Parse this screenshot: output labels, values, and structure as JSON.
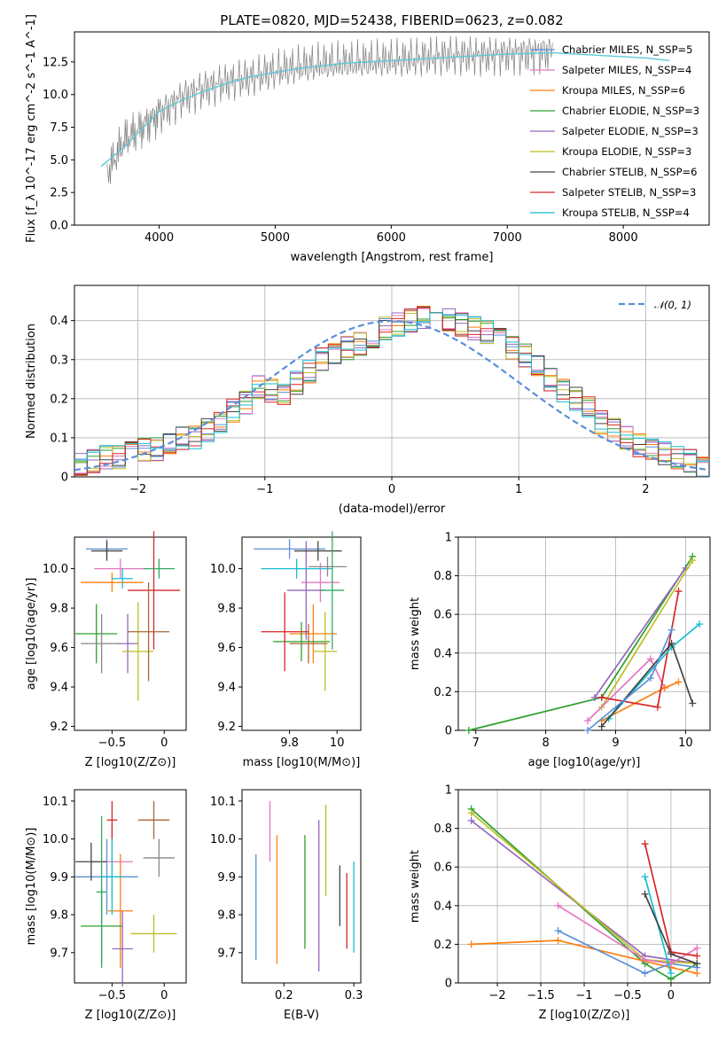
{
  "chart_data": [
    {
      "type": "line",
      "title": "PLATE=0820, MJD=52438, FIBERID=0623, z=0.082",
      "xlabel": "wavelength [Angstrom, rest frame]",
      "ylabel": "Flux [f_λ 10^-17 erg cm^-2 s^-1 A^-1]",
      "xlim": [
        3270,
        8740
      ],
      "ylim": [
        0,
        14.8
      ],
      "xticks": [
        4000,
        5000,
        6000,
        7000,
        8000
      ],
      "yticks": [
        0.0,
        2.5,
        5.0,
        7.5,
        10.0,
        12.5
      ],
      "legend_position": "upper right",
      "legend": [
        "Chabrier MILES, N_SSP=5",
        "Salpeter MILES, N_SSP=4",
        "Kroupa MILES, N_SSP=6",
        "Chabrier ELODIE, N_SSP=3",
        "Salpeter ELODIE, N_SSP=3",
        "Kroupa ELODIE, N_SSP=3",
        "Chabrier STELIB, N_SSP=6",
        "Salpeter STELIB, N_SSP=3",
        "Kroupa STELIB, N_SSP=4"
      ],
      "series": [
        {
          "name": "data",
          "x": [
            3550,
            3700,
            3850,
            4000,
            4200,
            4400,
            4600,
            4800,
            5000,
            5200,
            5400,
            5600,
            5800,
            6000,
            6200,
            6400,
            6600,
            6800,
            7000,
            7200,
            7400
          ],
          "y": [
            4.0,
            6.5,
            7.5,
            8.5,
            9.8,
            10.5,
            11.0,
            11.3,
            11.8,
            12.1,
            12.3,
            12.4,
            12.5,
            12.6,
            12.7,
            12.9,
            13.0,
            13.0,
            13.1,
            13.2,
            13.3
          ]
        },
        {
          "name": "model",
          "x": [
            3500,
            3700,
            3900,
            4000,
            4200,
            4400,
            4600,
            4800,
            5000,
            5200,
            5400,
            5600,
            5800,
            6000,
            6200,
            6400,
            6600,
            6800,
            7000,
            7200,
            7400,
            7600,
            7800,
            8000,
            8200,
            8400
          ],
          "y": [
            4.5,
            6.0,
            7.8,
            8.7,
            9.6,
            10.3,
            10.9,
            11.4,
            11.7,
            12.0,
            12.2,
            12.4,
            12.5,
            12.6,
            12.7,
            12.8,
            12.9,
            13.0,
            13.1,
            13.15,
            13.2,
            13.1,
            13.0,
            12.9,
            12.8,
            12.6
          ]
        }
      ]
    },
    {
      "type": "line",
      "xlabel": "(data-model)/error",
      "ylabel": "Normed distribution",
      "xlim": [
        -2.5,
        2.5
      ],
      "ylim": [
        0,
        0.49
      ],
      "xticks": [
        -2,
        -1,
        0,
        1,
        2
      ],
      "yticks": [
        0.0,
        0.1,
        0.2,
        0.3,
        0.4
      ],
      "grid": true,
      "legend_position": "upper right",
      "legend": [
        "𝒩(0, 1)"
      ],
      "bin_width": 0.1,
      "series": [
        {
          "name": "normal",
          "mean": 0,
          "sigma": 1
        },
        {
          "name": "hist",
          "x_start": -2.5,
          "values": [
            0.03,
            0.04,
            0.05,
            0.05,
            0.06,
            0.07,
            0.07,
            0.08,
            0.1,
            0.1,
            0.12,
            0.14,
            0.17,
            0.19,
            0.23,
            0.22,
            0.21,
            0.24,
            0.27,
            0.3,
            0.32,
            0.33,
            0.34,
            0.36,
            0.38,
            0.39,
            0.4,
            0.41,
            0.42,
            0.4,
            0.39,
            0.38,
            0.37,
            0.35,
            0.33,
            0.31,
            0.28,
            0.25,
            0.22,
            0.2,
            0.18,
            0.14,
            0.12,
            0.1,
            0.08,
            0.07,
            0.06,
            0.05,
            0.04,
            0.03
          ]
        }
      ]
    },
    {
      "type": "scatter",
      "xlabel": "Z [log10(Z/Z⊙)]",
      "ylabel": "age [log10(age/yr)]",
      "xlim": [
        -0.86,
        0.21
      ],
      "ylim": [
        9.18,
        10.16
      ],
      "xticks": [
        -0.5,
        0.0
      ],
      "yticks": [
        9.2,
        9.4,
        9.6,
        9.8,
        10.0
      ],
      "x": [
        -0.55,
        -0.42,
        -0.5,
        -0.65,
        -0.35,
        -0.25,
        -0.55,
        -0.1,
        -0.4,
        -0.6,
        -0.15,
        -0.05
      ],
      "y": [
        10.1,
        10.0,
        9.93,
        9.67,
        9.62,
        9.58,
        10.09,
        9.89,
        9.95,
        9.62,
        9.68,
        10.0
      ],
      "xerr": [
        0.2,
        0.25,
        0.3,
        0.2,
        0.1,
        0.15,
        0.15,
        0.25,
        0.1,
        0.2,
        0.2,
        0.15
      ],
      "yerr": [
        0.05,
        0.05,
        0.05,
        0.15,
        0.15,
        0.25,
        0.05,
        0.3,
        0.05,
        0.15,
        0.25,
        0.05
      ]
    },
    {
      "type": "scatter",
      "xlabel": "mass [log10(M/M⊙)]",
      "ylabel": "",
      "xlim": [
        9.6,
        10.1
      ],
      "ylim": [
        9.18,
        10.16
      ],
      "xticks": [
        9.8,
        10.0
      ],
      "yticks": [
        9.2,
        9.4,
        9.6,
        9.8,
        10.0
      ],
      "x": [
        9.8,
        9.93,
        9.9,
        9.85,
        9.87,
        9.95,
        9.92,
        9.78,
        9.83,
        9.96,
        9.88,
        9.98
      ],
      "y": [
        10.1,
        9.93,
        9.67,
        9.63,
        9.89,
        9.58,
        10.09,
        9.68,
        10.0,
        10.01,
        9.62,
        9.89
      ],
      "xerr": [
        0.15,
        0.08,
        0.1,
        0.12,
        0.08,
        0.05,
        0.1,
        0.1,
        0.15,
        0.08,
        0.08,
        0.05
      ],
      "yerr": [
        0.05,
        0.1,
        0.15,
        0.1,
        0.25,
        0.2,
        0.05,
        0.2,
        0.05,
        0.05,
        0.1,
        0.3
      ]
    },
    {
      "type": "line",
      "xlabel": "age [log10(age/yr)]",
      "ylabel": "mass weight",
      "xlim": [
        6.75,
        10.35
      ],
      "ylim": [
        0,
        1.0
      ],
      "xticks": [
        7,
        8,
        9,
        10
      ],
      "yticks": [
        0.0,
        0.2,
        0.4,
        0.6,
        0.8,
        1.0
      ],
      "grid": true,
      "series": [
        {
          "name": "Chabrier ELODIE",
          "x": [
            6.9,
            8.8,
            10.1
          ],
          "y": [
            0.0,
            0.17,
            0.9
          ]
        },
        {
          "name": "Salpeter ELODIE",
          "x": [
            8.7,
            10.0
          ],
          "y": [
            0.17,
            0.84
          ]
        },
        {
          "name": "Kroupa ELODIE",
          "x": [
            8.8,
            10.1
          ],
          "y": [
            0.12,
            0.88
          ]
        },
        {
          "name": "Salpeter MILES",
          "x": [
            8.6,
            9.5,
            9.7
          ],
          "y": [
            0.05,
            0.37,
            0.22
          ]
        },
        {
          "name": "Kroupa MILES",
          "x": [
            8.8,
            9.7,
            9.9
          ],
          "y": [
            0.05,
            0.22,
            0.25
          ]
        },
        {
          "name": "Salpeter STELIB",
          "x": [
            8.8,
            9.6,
            9.9
          ],
          "y": [
            0.17,
            0.12,
            0.72
          ]
        },
        {
          "name": "Kroupa STELIB",
          "x": [
            8.9,
            9.8,
            10.2
          ],
          "y": [
            0.06,
            0.43,
            0.55
          ]
        },
        {
          "name": "Chabrier STELIB",
          "x": [
            8.8,
            9.8,
            10.1
          ],
          "y": [
            0.02,
            0.45,
            0.14
          ]
        },
        {
          "name": "Chabrier MILES",
          "x": [
            8.6,
            9.5,
            9.8
          ],
          "y": [
            0.0,
            0.27,
            0.52
          ]
        }
      ]
    },
    {
      "type": "scatter",
      "xlabel": "Z [log10(Z/Z⊙)]",
      "ylabel": "mass [log10(M/M⊙)]",
      "xlim": [
        -0.86,
        0.21
      ],
      "ylim": [
        9.62,
        10.13
      ],
      "xticks": [
        -0.5,
        0.0
      ],
      "yticks": [
        9.7,
        9.8,
        9.9,
        10.0,
        10.1
      ],
      "x": [
        -0.55,
        -0.5,
        -0.42,
        -0.6,
        -0.4,
        -0.1,
        -0.7,
        -0.5,
        -0.5,
        -0.05,
        -0.1,
        -0.6
      ],
      "y": [
        9.9,
        9.94,
        9.81,
        9.77,
        9.71,
        9.75,
        9.94,
        10.05,
        9.9,
        9.95,
        10.05,
        9.86
      ],
      "xerr": [
        0.3,
        0.2,
        0.12,
        0.2,
        0.1,
        0.22,
        0.15,
        0.05,
        0.1,
        0.15,
        0.15,
        0.05
      ],
      "yerr": [
        0.1,
        0.1,
        0.15,
        0.1,
        0.1,
        0.05,
        0.05,
        0.05,
        0.1,
        0.05,
        0.05,
        0.2
      ]
    },
    {
      "type": "scatter",
      "xlabel": "E(B-V)",
      "ylabel": "",
      "xlim": [
        0.14,
        0.31
      ],
      "ylim": [
        9.62,
        10.13
      ],
      "xticks": [
        0.2,
        0.3
      ],
      "yticks": [
        9.7,
        9.8,
        9.9,
        10.0,
        10.1
      ],
      "x": [
        0.16,
        0.18,
        0.19,
        0.23,
        0.25,
        0.26,
        0.28,
        0.29,
        0.3
      ],
      "y": [
        9.82,
        10.02,
        9.84,
        9.86,
        9.85,
        9.97,
        9.85,
        9.81,
        9.82
      ],
      "yerr": [
        0.14,
        0.08,
        0.17,
        0.15,
        0.2,
        0.12,
        0.08,
        0.1,
        0.12
      ]
    },
    {
      "type": "line",
      "xlabel": "Z [log10(Z/Z⊙)]",
      "ylabel": "mass weight",
      "xlim": [
        -2.45,
        0.45
      ],
      "ylim": [
        0,
        1.0
      ],
      "xticks": [
        -2.0,
        -1.5,
        -1.0,
        -0.5,
        0.0
      ],
      "yticks": [
        0.0,
        0.2,
        0.4,
        0.6,
        0.8,
        1.0
      ],
      "grid": true,
      "series": [
        {
          "name": "Chabrier ELODIE",
          "x": [
            -2.3,
            -0.3,
            0.0,
            0.3
          ],
          "y": [
            0.9,
            0.1,
            0.02,
            0.1
          ]
        },
        {
          "name": "Salpeter ELODIE",
          "x": [
            -2.3,
            -0.3,
            0.3
          ],
          "y": [
            0.84,
            0.14,
            0.1
          ]
        },
        {
          "name": "Kroupa ELODIE",
          "x": [
            -2.3,
            -0.3,
            0.3
          ],
          "y": [
            0.88,
            0.12,
            0.1
          ]
        },
        {
          "name": "Kroupa MILES",
          "x": [
            -2.3,
            -1.3,
            0.0,
            0.3
          ],
          "y": [
            0.2,
            0.22,
            0.08,
            0.05
          ]
        },
        {
          "name": "Chabrier MILES",
          "x": [
            -1.3,
            -0.3,
            0.0,
            0.3
          ],
          "y": [
            0.27,
            0.05,
            0.1,
            0.08
          ]
        },
        {
          "name": "Salpeter MILES",
          "x": [
            -1.3,
            -0.3,
            0.0,
            0.3
          ],
          "y": [
            0.4,
            0.12,
            0.1,
            0.18
          ]
        },
        {
          "name": "Salpeter STELIB",
          "x": [
            -0.3,
            0.0,
            0.3
          ],
          "y": [
            0.72,
            0.16,
            0.14
          ]
        },
        {
          "name": "Kroupa STELIB",
          "x": [
            -0.3,
            0.0
          ],
          "y": [
            0.55,
            0.05
          ]
        },
        {
          "name": "Chabrier STELIB",
          "x": [
            -0.3,
            0.0,
            0.3
          ],
          "y": [
            0.46,
            0.15,
            0.1
          ]
        }
      ]
    }
  ],
  "colors": {
    "data": "#808080",
    "normal_line": "#5b8fd9",
    "series": [
      "#1f77b4",
      "#ff7f0e",
      "#2ca02c",
      "#d62728",
      "#9467bd",
      "#8c564b",
      "#e377c2",
      "#7f7f7f",
      "#bcbd22"
    ]
  }
}
